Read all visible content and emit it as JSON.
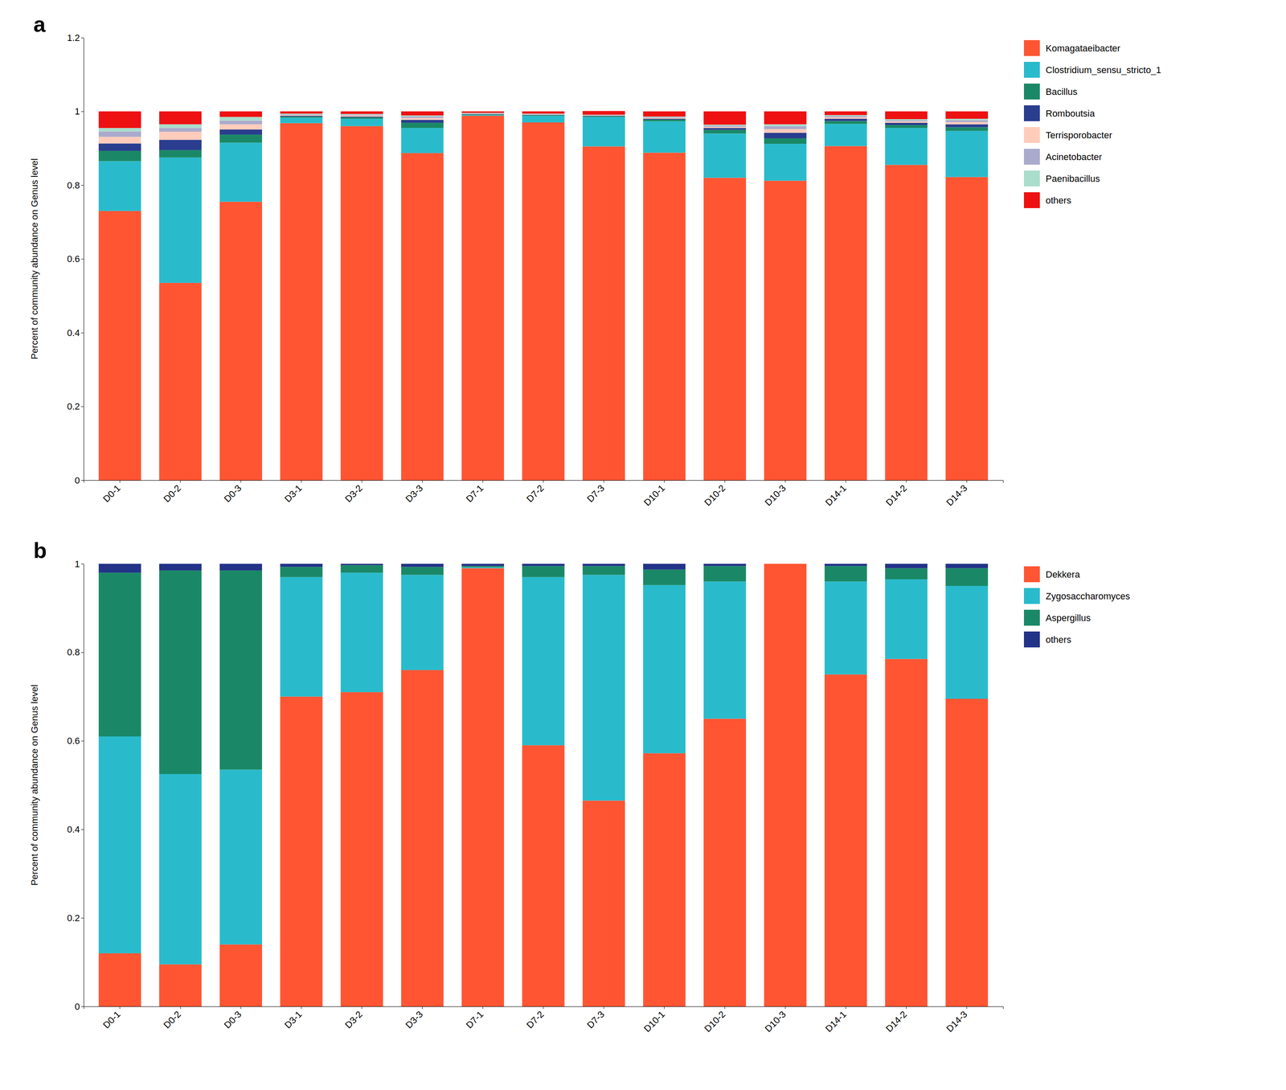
{
  "chart_data": [
    {
      "type": "bar",
      "stacked": true,
      "title": "a",
      "y_label": "Percent of community abundance on Genus level",
      "categories": [
        "D0-1",
        "D0-2",
        "D0-3",
        "D3-1",
        "D3-2",
        "D3-3",
        "D7-1",
        "D7-2",
        "D7-3",
        "D10-1",
        "D10-2",
        "D10-3",
        "D14-1",
        "D14-2",
        "D14-3"
      ],
      "series": [
        {
          "name": "Komagataeibacter",
          "color": "#FF5533",
          "values": [
            0.73,
            0.535,
            0.755,
            0.968,
            0.96,
            0.887,
            0.988,
            0.97,
            0.905,
            0.888,
            0.82,
            0.812,
            0.906,
            0.855,
            0.822
          ]
        },
        {
          "name": "Clostridium_sensu_stricto_1",
          "color": "#29BBCC",
          "values": [
            0.135,
            0.34,
            0.16,
            0.015,
            0.02,
            0.068,
            0.002,
            0.018,
            0.08,
            0.085,
            0.12,
            0.1,
            0.06,
            0.1,
            0.125
          ]
        },
        {
          "name": "Bacillus",
          "color": "#1A8866",
          "values": [
            0.028,
            0.02,
            0.022,
            0.003,
            0.004,
            0.014,
            0.002,
            0.002,
            0.002,
            0.005,
            0.01,
            0.015,
            0.008,
            0.008,
            0.01
          ]
        },
        {
          "name": "Romboutsia",
          "color": "#2A3D8F",
          "values": [
            0.02,
            0.028,
            0.014,
            0.002,
            0.002,
            0.008,
            0.001,
            0.001,
            0.001,
            0.002,
            0.005,
            0.015,
            0.006,
            0.006,
            0.008
          ]
        },
        {
          "name": "Terrisporobacter",
          "color": "#FFCCBB",
          "values": [
            0.018,
            0.022,
            0.014,
            0.002,
            0.003,
            0.005,
            0.001,
            0.001,
            0.001,
            0.002,
            0.003,
            0.01,
            0.004,
            0.004,
            0.006
          ]
        },
        {
          "name": "Acinetobacter",
          "color": "#AAAACC",
          "values": [
            0.014,
            0.01,
            0.01,
            0.002,
            0.002,
            0.004,
            0.001,
            0.001,
            0.001,
            0.002,
            0.003,
            0.008,
            0.003,
            0.003,
            0.005
          ]
        },
        {
          "name": "Paenibacillus",
          "color": "#AADDCC",
          "values": [
            0.01,
            0.01,
            0.01,
            0.002,
            0.002,
            0.003,
            0.001,
            0.001,
            0.001,
            0.002,
            0.003,
            0.005,
            0.003,
            0.003,
            0.004
          ]
        },
        {
          "name": "others",
          "color": "#EE1111",
          "values": [
            0.045,
            0.035,
            0.015,
            0.006,
            0.007,
            0.011,
            0.004,
            0.006,
            0.01,
            0.014,
            0.036,
            0.035,
            0.01,
            0.021,
            0.02
          ]
        }
      ],
      "ylim": [
        0,
        1.2
      ],
      "yticks": [
        0,
        0.2,
        0.4,
        0.6,
        0.8,
        1,
        1.2
      ],
      "grid": false,
      "legend": "right"
    },
    {
      "type": "bar",
      "stacked": true,
      "title": "b",
      "y_label": "Percent of community abundance on Genus level",
      "categories": [
        "D0-1",
        "D0-2",
        "D0-3",
        "D3-1",
        "D3-2",
        "D3-3",
        "D7-1",
        "D7-2",
        "D7-3",
        "D10-1",
        "D10-2",
        "D10-3",
        "D14-1",
        "D14-2",
        "D14-3"
      ],
      "series": [
        {
          "name": "Dekkera",
          "color": "#FF5533",
          "values": [
            0.12,
            0.095,
            0.14,
            0.7,
            0.71,
            0.76,
            0.99,
            0.59,
            0.465,
            0.572,
            0.65,
            1.0,
            0.75,
            0.785,
            0.695
          ]
        },
        {
          "name": "Zygosaccharomyces",
          "color": "#29BBCC",
          "values": [
            0.49,
            0.43,
            0.395,
            0.27,
            0.27,
            0.215,
            0.002,
            0.38,
            0.51,
            0.38,
            0.31,
            0.0,
            0.21,
            0.18,
            0.255
          ]
        },
        {
          "name": "Aspergillus",
          "color": "#1A8866",
          "values": [
            0.37,
            0.46,
            0.45,
            0.023,
            0.017,
            0.018,
            0.003,
            0.025,
            0.02,
            0.035,
            0.035,
            0.0,
            0.035,
            0.025,
            0.04
          ]
        },
        {
          "name": "others",
          "color": "#223388",
          "values": [
            0.02,
            0.015,
            0.015,
            0.007,
            0.003,
            0.007,
            0.005,
            0.005,
            0.005,
            0.013,
            0.005,
            0.0,
            0.005,
            0.01,
            0.01
          ]
        }
      ],
      "ylim": [
        0,
        1
      ],
      "yticks": [
        0,
        0.2,
        0.4,
        0.6,
        0.8,
        1
      ],
      "grid": false,
      "legend": "right"
    }
  ]
}
